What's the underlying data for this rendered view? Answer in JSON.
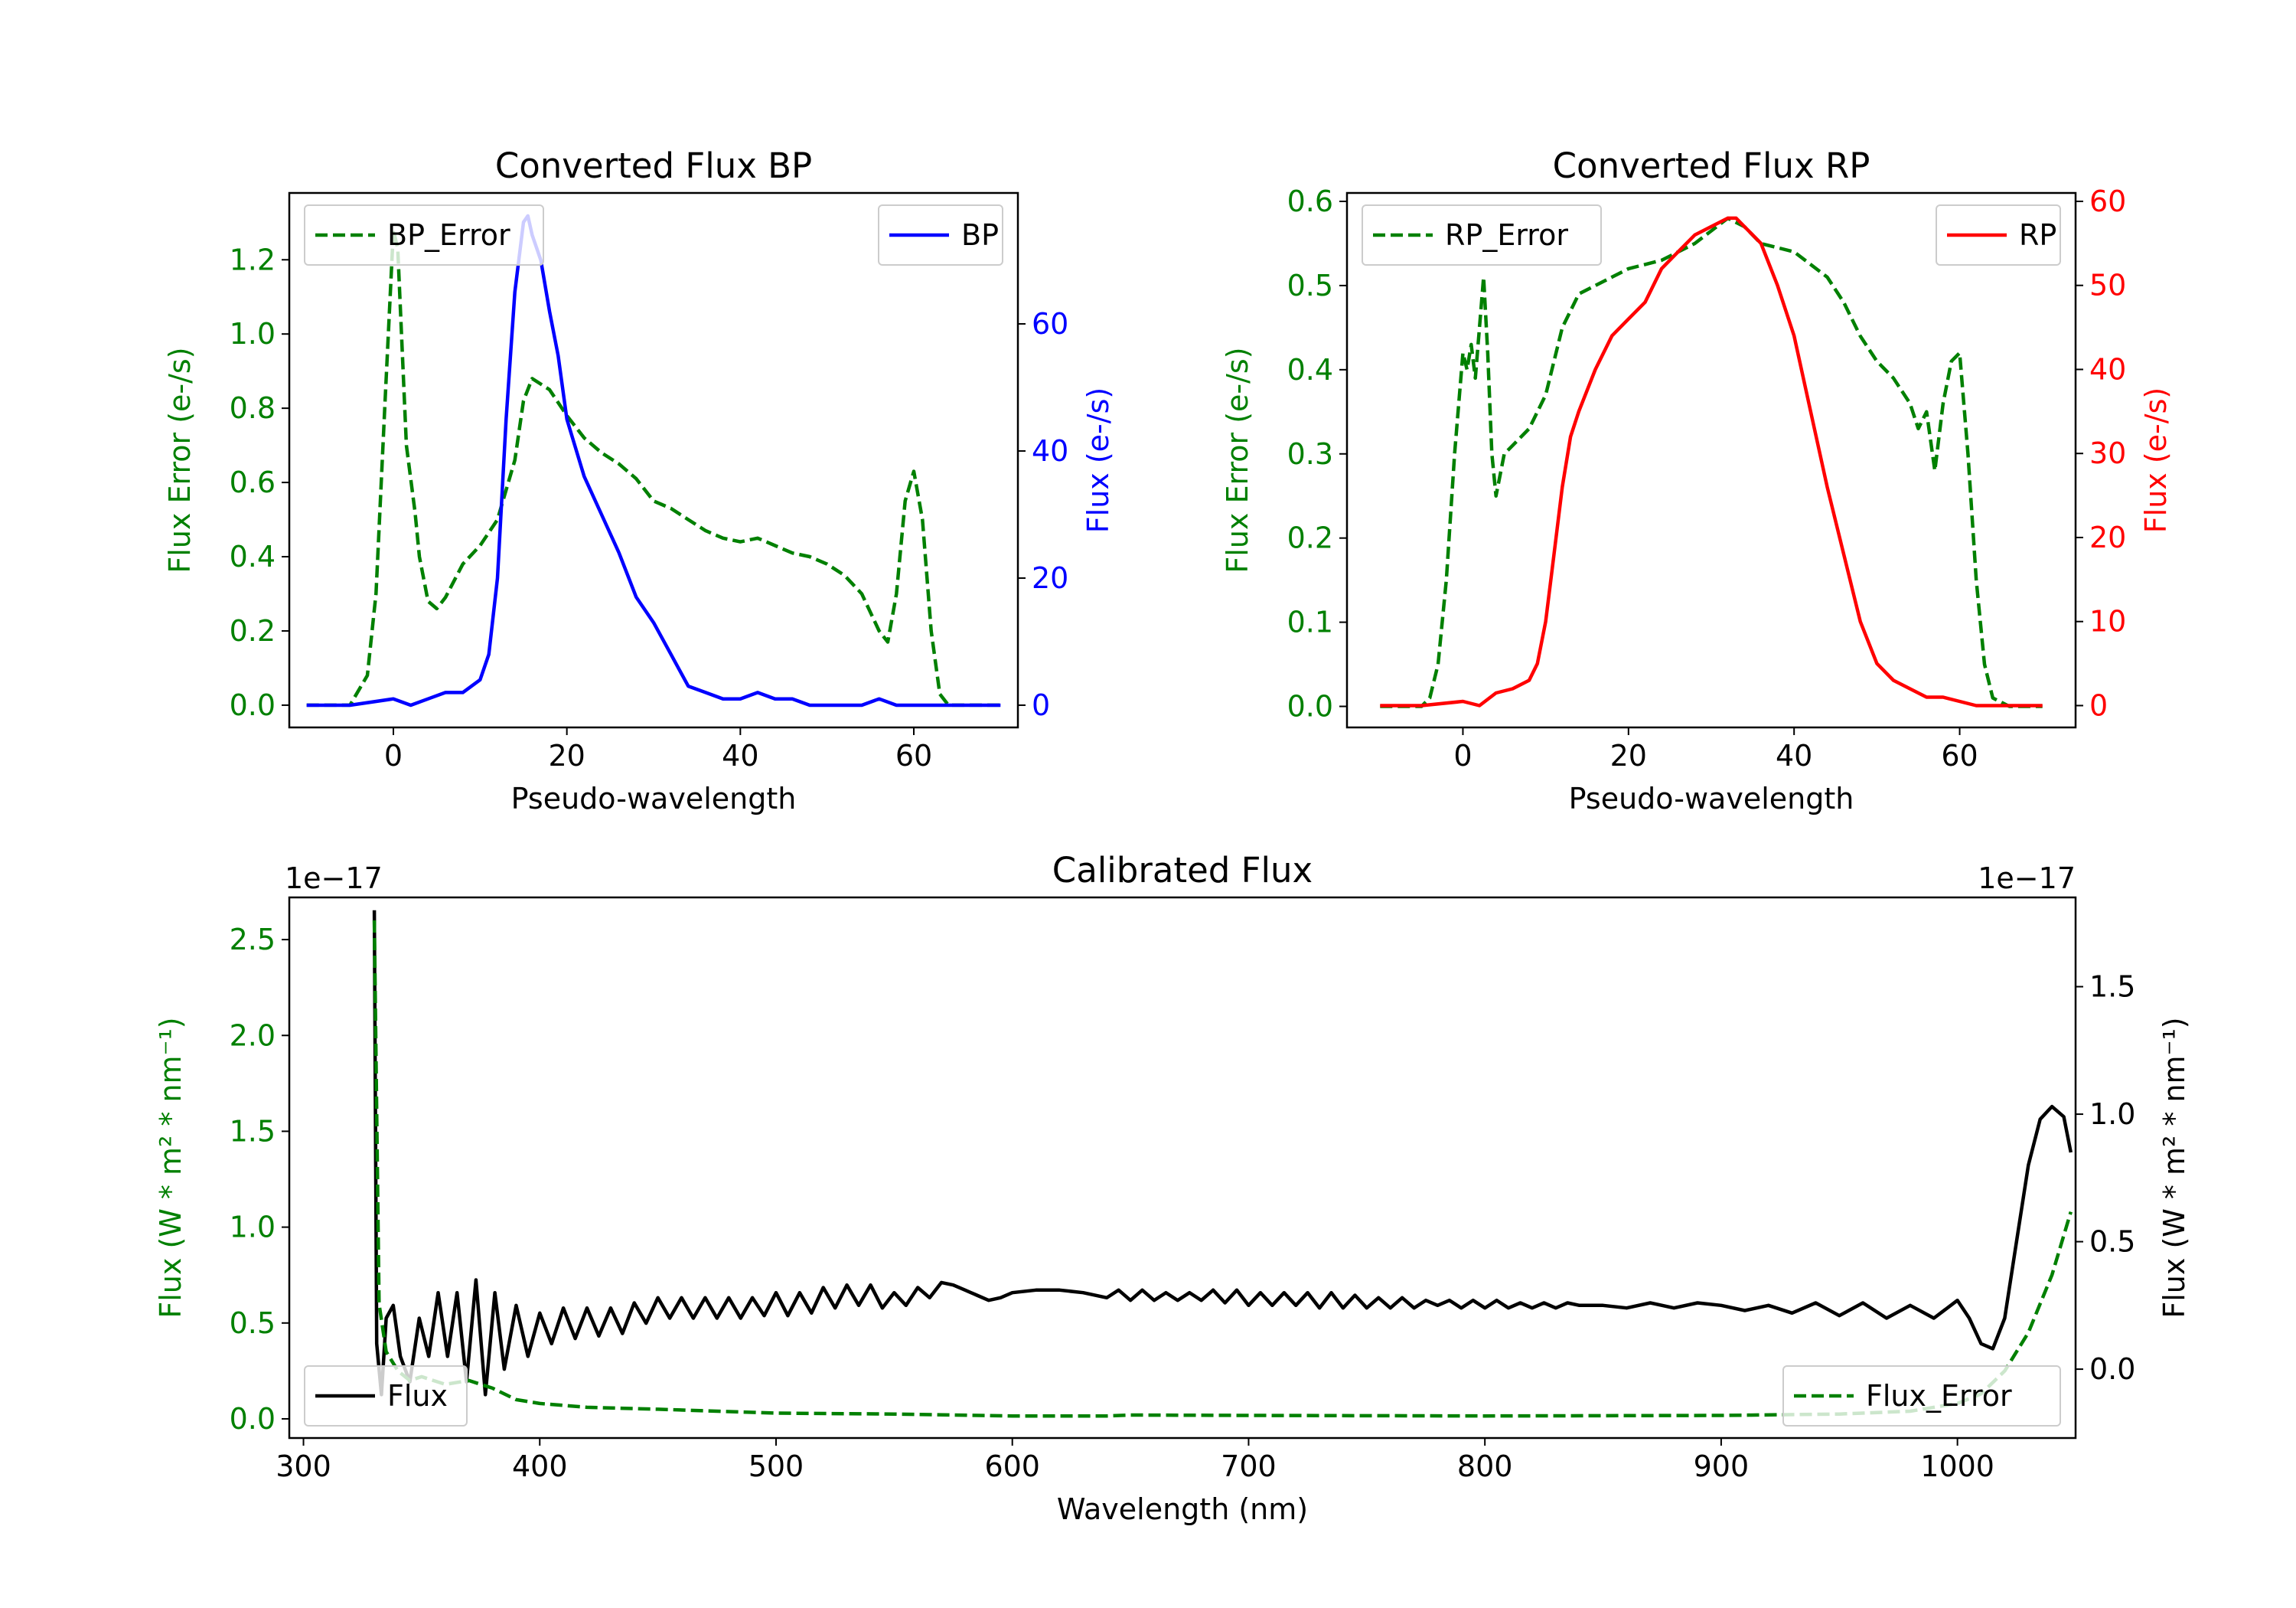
{
  "chart_data": [
    {
      "type": "line",
      "title": "Converted Flux BP",
      "xlabel": "Pseudo-wavelength",
      "ylabel_left": "Flux Error (e-/s)",
      "ylabel_right": "Flux (e-/s)",
      "xlim": [
        -12,
        72
      ],
      "ylim_left": [
        -0.06,
        1.38
      ],
      "ylim_right": [
        -3.5,
        80.6
      ],
      "xticks": [
        0,
        20,
        40,
        60
      ],
      "xtick_labels": [
        "0",
        "20",
        "40",
        "60"
      ],
      "yticks_left": [
        0.0,
        0.2,
        0.4,
        0.6,
        0.8,
        1.0,
        1.2
      ],
      "ytick_labels_left": [
        "0.0",
        "0.2",
        "0.4",
        "0.6",
        "0.8",
        "1.0",
        "1.2"
      ],
      "yticks_right": [
        0,
        20,
        40,
        60
      ],
      "ytick_labels_right": [
        "0",
        "20",
        "40",
        "60"
      ],
      "left_color": "#008000",
      "right_color": "#0000ff",
      "legend_left": {
        "label": "BP_Error",
        "placement": "upper left"
      },
      "legend_right": {
        "label": "BP",
        "placement": "upper right"
      },
      "series": [
        {
          "name": "BP_Error",
          "axis": "left",
          "color": "#008000",
          "style": "dashed",
          "x": [
            -10,
            -5,
            -3,
            -2,
            -1,
            0,
            0.5,
            1.5,
            2.5,
            3,
            4,
            5,
            6,
            8,
            10,
            12,
            14,
            15,
            16,
            18,
            20,
            22,
            24,
            26,
            28,
            30,
            32,
            34,
            36,
            38,
            40,
            42,
            44,
            46,
            48,
            50,
            52,
            54,
            55,
            56,
            57,
            58,
            59,
            60,
            61,
            62,
            63,
            64,
            66,
            68,
            70
          ],
          "y": [
            0.0,
            0.0,
            0.08,
            0.3,
            0.8,
            1.28,
            1.23,
            0.7,
            0.52,
            0.4,
            0.28,
            0.26,
            0.29,
            0.38,
            0.43,
            0.5,
            0.66,
            0.82,
            0.88,
            0.85,
            0.78,
            0.72,
            0.68,
            0.65,
            0.61,
            0.55,
            0.53,
            0.5,
            0.47,
            0.45,
            0.44,
            0.45,
            0.43,
            0.41,
            0.4,
            0.38,
            0.35,
            0.3,
            0.25,
            0.2,
            0.17,
            0.3,
            0.55,
            0.63,
            0.5,
            0.2,
            0.03,
            0.0,
            0.0,
            0.0,
            0.0
          ]
        },
        {
          "name": "BP",
          "axis": "right",
          "color": "#0000ff",
          "style": "solid",
          "x": [
            -10,
            -5,
            0,
            2,
            4,
            6,
            8,
            10,
            11,
            12,
            13,
            14,
            15,
            15.5,
            16,
            17,
            18,
            19,
            20,
            22,
            24,
            26,
            28,
            30,
            32,
            34,
            36,
            38,
            40,
            42,
            44,
            46,
            48,
            50,
            52,
            54,
            56,
            58,
            60,
            62,
            64,
            66,
            68,
            70
          ],
          "y": [
            0,
            0,
            1,
            0,
            1,
            2,
            2,
            4,
            8,
            20,
            45,
            65,
            76,
            77,
            74,
            70,
            62,
            55,
            45,
            36,
            30,
            24,
            17,
            13,
            8,
            3,
            2,
            1,
            1,
            2,
            1,
            1,
            0,
            0,
            0,
            0,
            1,
            0,
            0,
            0,
            0,
            0,
            0,
            0
          ]
        }
      ]
    },
    {
      "type": "line",
      "title": "Converted Flux RP",
      "xlabel": "Pseudo-wavelength",
      "ylabel_left": "Flux Error (e-/s)",
      "ylabel_right": "Flux (e-/s)",
      "xlim": [
        -14,
        74
      ],
      "ylim_left": [
        -0.025,
        0.61
      ],
      "ylim_right": [
        -2.6,
        61
      ],
      "xticks": [
        0,
        20,
        40,
        60
      ],
      "xtick_labels": [
        "0",
        "20",
        "40",
        "60"
      ],
      "yticks_left": [
        0.0,
        0.1,
        0.2,
        0.3,
        0.4,
        0.5,
        0.6
      ],
      "ytick_labels_left": [
        "0.0",
        "0.1",
        "0.2",
        "0.3",
        "0.4",
        "0.5",
        "0.6"
      ],
      "yticks_right": [
        0,
        10,
        20,
        30,
        40,
        50,
        60
      ],
      "ytick_labels_right": [
        "0",
        "10",
        "20",
        "30",
        "40",
        "50",
        "60"
      ],
      "left_color": "#008000",
      "right_color": "#ff0000",
      "legend_left": {
        "label": "RP_Error",
        "placement": "upper left"
      },
      "legend_right": {
        "label": "RP",
        "placement": "upper right"
      },
      "series": [
        {
          "name": "RP_Error",
          "axis": "right_x_left_y",
          "color": "#008000",
          "style": "dashed",
          "x": [
            -10,
            -5,
            -4,
            -3,
            -2,
            -1,
            0,
            0.5,
            1,
            1.5,
            2,
            2.5,
            3,
            3.5,
            4,
            5,
            6,
            8,
            10,
            12,
            14,
            16,
            18,
            20,
            24,
            28,
            30,
            32,
            34,
            36,
            40,
            44,
            46,
            48,
            50,
            52,
            54,
            55,
            56,
            57,
            58,
            59,
            60,
            61,
            62,
            63,
            64,
            66,
            68,
            70
          ],
          "y": [
            0.0,
            0.0,
            0.01,
            0.05,
            0.15,
            0.3,
            0.42,
            0.4,
            0.43,
            0.39,
            0.45,
            0.51,
            0.42,
            0.3,
            0.25,
            0.3,
            0.31,
            0.33,
            0.37,
            0.45,
            0.49,
            0.5,
            0.51,
            0.52,
            0.53,
            0.55,
            0.565,
            0.58,
            0.57,
            0.55,
            0.54,
            0.51,
            0.48,
            0.44,
            0.41,
            0.39,
            0.36,
            0.33,
            0.35,
            0.28,
            0.36,
            0.41,
            0.42,
            0.3,
            0.15,
            0.05,
            0.01,
            0.0,
            0.0,
            0.0
          ]
        },
        {
          "name": "RP",
          "axis": "right",
          "color": "#ff0000",
          "style": "solid",
          "x": [
            -10,
            -5,
            0,
            2,
            4,
            6,
            8,
            9,
            10,
            11,
            12,
            13,
            14,
            16,
            18,
            20,
            22,
            24,
            26,
            28,
            30,
            32,
            33,
            34,
            36,
            38,
            40,
            42,
            44,
            46,
            48,
            50,
            52,
            54,
            56,
            58,
            60,
            62,
            64,
            66,
            68,
            70
          ],
          "y": [
            0,
            0,
            0.5,
            0,
            1.5,
            2,
            3,
            5,
            10,
            18,
            26,
            32,
            35,
            40,
            44,
            46,
            48,
            52,
            54,
            56,
            57,
            58,
            58,
            57,
            55,
            50,
            44,
            35,
            26,
            18,
            10,
            5,
            3,
            2,
            1,
            1,
            0.5,
            0,
            0,
            0,
            0,
            0
          ]
        }
      ]
    },
    {
      "type": "line",
      "title": "Calibrated Flux",
      "xlabel": "Wavelength (nm)",
      "ylabel_left": "Flux (W * m² * nm⁻¹)",
      "ylabel_right": "Flux (W * m² * nm⁻¹)",
      "offset_left": "1e−17",
      "offset_right": "1e−17",
      "xlim": [
        294,
        1050
      ],
      "ylim_left": [
        -0.1,
        2.72
      ],
      "ylim_right": [
        -0.27,
        1.85
      ],
      "xticks": [
        300,
        400,
        500,
        600,
        700,
        800,
        900,
        1000
      ],
      "xtick_labels": [
        "300",
        "400",
        "500",
        "600",
        "700",
        "800",
        "900",
        "1000"
      ],
      "yticks_left": [
        0.0,
        0.5,
        1.0,
        1.5,
        2.0,
        2.5
      ],
      "ytick_labels_left": [
        "0.0",
        "0.5",
        "1.0",
        "1.5",
        "2.0",
        "2.5"
      ],
      "yticks_right": [
        0.0,
        0.5,
        1.0,
        1.5
      ],
      "ytick_labels_right": [
        "0.0",
        "0.5",
        "1.0",
        "1.5"
      ],
      "left_color": "#008000",
      "right_color": "#000000",
      "legend_left": {
        "label": "Flux",
        "placement": "lower left"
      },
      "legend_right": {
        "label": "Flux_Error",
        "placement": "lower right"
      },
      "series": [
        {
          "name": "Flux",
          "axis": "right",
          "color": "#000000",
          "style": "solid",
          "x": [
            330,
            331,
            333,
            335,
            338,
            341,
            345,
            349,
            353,
            357,
            361,
            365,
            369,
            373,
            377,
            381,
            385,
            390,
            395,
            400,
            405,
            410,
            415,
            420,
            425,
            430,
            435,
            440,
            445,
            450,
            455,
            460,
            465,
            470,
            475,
            480,
            485,
            490,
            495,
            500,
            505,
            510,
            515,
            520,
            525,
            530,
            535,
            540,
            545,
            550,
            555,
            560,
            565,
            570,
            575,
            580,
            585,
            590,
            595,
            600,
            610,
            620,
            630,
            640,
            645,
            650,
            655,
            660,
            665,
            670,
            675,
            680,
            685,
            690,
            695,
            700,
            705,
            710,
            715,
            720,
            725,
            730,
            735,
            740,
            745,
            750,
            755,
            760,
            765,
            770,
            775,
            780,
            785,
            790,
            795,
            800,
            805,
            810,
            815,
            820,
            825,
            830,
            835,
            840,
            850,
            860,
            870,
            880,
            890,
            900,
            910,
            920,
            930,
            940,
            950,
            960,
            970,
            980,
            990,
            1000,
            1005,
            1010,
            1015,
            1020,
            1025,
            1030,
            1035,
            1040,
            1045,
            1048
          ],
          "y": [
            1.8,
            0.1,
            -0.1,
            0.2,
            0.25,
            0.05,
            -0.05,
            0.2,
            0.05,
            0.3,
            0.05,
            0.3,
            -0.05,
            0.35,
            -0.1,
            0.3,
            0.0,
            0.25,
            0.05,
            0.22,
            0.1,
            0.24,
            0.12,
            0.24,
            0.13,
            0.24,
            0.14,
            0.26,
            0.18,
            0.28,
            0.2,
            0.28,
            0.2,
            0.28,
            0.2,
            0.28,
            0.2,
            0.28,
            0.21,
            0.3,
            0.21,
            0.3,
            0.22,
            0.32,
            0.24,
            0.33,
            0.25,
            0.33,
            0.24,
            0.3,
            0.25,
            0.32,
            0.28,
            0.34,
            0.33,
            0.31,
            0.29,
            0.27,
            0.28,
            0.3,
            0.31,
            0.31,
            0.3,
            0.28,
            0.31,
            0.27,
            0.31,
            0.27,
            0.3,
            0.27,
            0.3,
            0.27,
            0.31,
            0.26,
            0.31,
            0.25,
            0.3,
            0.25,
            0.3,
            0.25,
            0.3,
            0.24,
            0.3,
            0.24,
            0.29,
            0.24,
            0.28,
            0.24,
            0.28,
            0.24,
            0.27,
            0.25,
            0.27,
            0.24,
            0.27,
            0.24,
            0.27,
            0.24,
            0.26,
            0.24,
            0.26,
            0.24,
            0.26,
            0.25,
            0.25,
            0.24,
            0.26,
            0.24,
            0.26,
            0.25,
            0.23,
            0.25,
            0.22,
            0.26,
            0.21,
            0.26,
            0.2,
            0.25,
            0.2,
            0.27,
            0.2,
            0.1,
            0.08,
            0.2,
            0.5,
            0.8,
            0.98,
            1.03,
            0.99,
            0.85
          ]
        },
        {
          "name": "Flux_Error",
          "axis": "left",
          "color": "#008000",
          "style": "dashed",
          "x": [
            330,
            332,
            335,
            340,
            345,
            350,
            360,
            370,
            380,
            390,
            400,
            420,
            450,
            500,
            550,
            600,
            640,
            650,
            700,
            800,
            900,
            950,
            980,
            1000,
            1010,
            1020,
            1030,
            1040,
            1048
          ],
          "y": [
            2.6,
            0.6,
            0.35,
            0.25,
            0.2,
            0.22,
            0.18,
            0.2,
            0.16,
            0.1,
            0.08,
            0.06,
            0.05,
            0.03,
            0.025,
            0.015,
            0.015,
            0.02,
            0.018,
            0.015,
            0.018,
            0.025,
            0.04,
            0.08,
            0.13,
            0.25,
            0.45,
            0.75,
            1.08
          ]
        }
      ]
    }
  ]
}
